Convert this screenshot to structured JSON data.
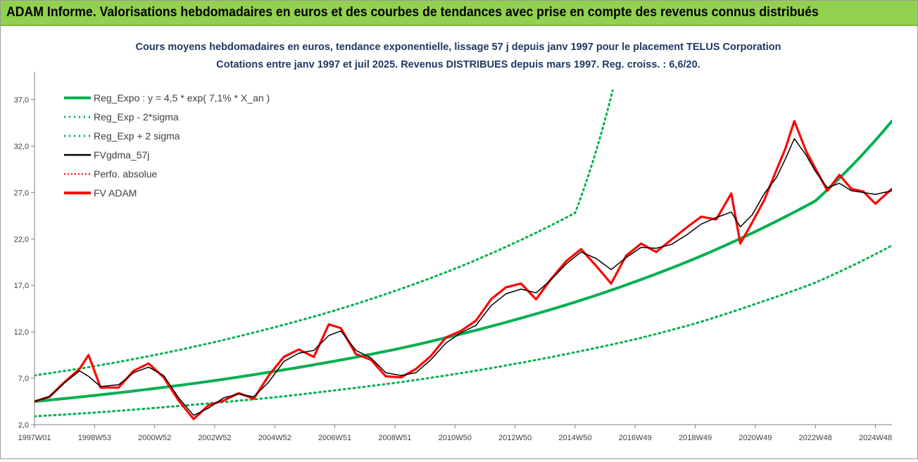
{
  "header": {
    "title": "ADAM Informe. Valorisations hebdomadaires en euros et des courbes de tendances avec prise en compte des revenus connus distribués"
  },
  "colors": {
    "banner": "#92d050",
    "trend": "#00b050",
    "fv_gdma": "#000000",
    "fv_adam": "#ff0000",
    "title_text": "#1f3864"
  },
  "chart_data": {
    "type": "line",
    "title": "Cours moyens hebdomadaires en euros, tendance exponentielle, lissage 57 j depuis janv 1997  pour le placement TELUS Corporation",
    "subtitle": "Cotations entre janv 1997 et juil 2025. Revenus DISTRIBUES depuis mars 1997. Reg. croiss. : 6,6/20.",
    "xlabel": "",
    "ylabel": "",
    "x_range": [
      1997.0,
      2025.55
    ],
    "ylim": [
      2.0,
      40.0
    ],
    "y_ticks": [
      "2,0",
      "7,0",
      "12,0",
      "17,0",
      "22,0",
      "27,0",
      "32,0",
      "37,0"
    ],
    "y_tick_values": [
      2,
      7,
      12,
      17,
      22,
      27,
      32,
      37
    ],
    "x_ticks": [
      "1997W01",
      "1998W53",
      "2000W52",
      "2002W52",
      "2004W52",
      "2006W51",
      "2008W51",
      "2010W50",
      "2012W50",
      "2014W50",
      "2016W49",
      "2018W49",
      "2020W49",
      "2022W48",
      "2024W48"
    ],
    "x_tick_years": [
      1997.0,
      1999.0,
      2001.0,
      2003.0,
      2005.0,
      2007.0,
      2009.0,
      2011.0,
      2013.0,
      2015.0,
      2017.0,
      2019.0,
      2021.0,
      2023.0,
      2025.0
    ],
    "grid": false,
    "legend_placement": "top-left",
    "legend": [
      "Reg_Expo : y = 4,5  * exp( 7,1% *  X_an )",
      "Reg_Exp - 2*sigma",
      "Reg_Exp + 2 sigma",
      "FVgdma_57j",
      "Perfo. absolue",
      "FV ADAM"
    ],
    "series": [
      {
        "name": "Reg_Expo : y = 4,5  * exp( 7,1% *  X_an )",
        "style": "solid-thick",
        "x": [
          1997.0,
          1999.0,
          2001.0,
          2003.0,
          2005.0,
          2007.0,
          2009.0,
          2011.0,
          2013.0,
          2015.0,
          2017.0,
          2019.0,
          2021.0,
          2023.0,
          2025.55
        ],
        "values": [
          4.5,
          5.15,
          5.9,
          6.75,
          7.75,
          8.85,
          10.1,
          11.6,
          13.3,
          15.2,
          17.4,
          19.9,
          22.8,
          26.1,
          34.7
        ]
      },
      {
        "name": "Reg_Exp - 2*sigma",
        "style": "dotted",
        "x": [
          1997.0,
          1999.0,
          2001.0,
          2003.0,
          2005.0,
          2007.0,
          2009.0,
          2011.0,
          2013.0,
          2015.0,
          2017.0,
          2019.0,
          2021.0,
          2023.0,
          2025.55
        ],
        "values": [
          2.9,
          3.3,
          3.8,
          4.35,
          4.95,
          5.7,
          6.5,
          7.45,
          8.55,
          9.8,
          11.2,
          12.9,
          15.0,
          17.3,
          21.3
        ]
      },
      {
        "name": "Reg_Exp + 2 sigma",
        "style": "dotted",
        "x": [
          1997.0,
          1999.0,
          2001.0,
          2003.0,
          2005.0,
          2007.0,
          2009.0,
          2011.0,
          2013.0,
          2015.0,
          2016.25
        ],
        "values": [
          7.3,
          8.3,
          9.5,
          10.9,
          12.5,
          14.3,
          16.4,
          18.8,
          21.6,
          24.8,
          38.0
        ]
      },
      {
        "name": "FVgdma_57j",
        "style": "solid-thin",
        "x": [
          1997.0,
          1997.5,
          1998.0,
          1998.5,
          1998.8,
          1999.2,
          1999.8,
          2000.3,
          2000.8,
          2001.3,
          2001.8,
          2002.3,
          2002.8,
          2003.3,
          2003.8,
          2004.3,
          2004.8,
          2005.3,
          2005.8,
          2006.3,
          2006.8,
          2007.2,
          2007.7,
          2008.2,
          2008.7,
          2009.2,
          2009.7,
          2010.2,
          2010.7,
          2011.2,
          2011.7,
          2012.2,
          2012.7,
          2013.2,
          2013.7,
          2014.2,
          2014.7,
          2015.2,
          2015.7,
          2016.2,
          2016.7,
          2017.2,
          2017.7,
          2018.2,
          2018.7,
          2019.2,
          2019.7,
          2020.2,
          2020.5,
          2020.9,
          2021.3,
          2021.7,
          2022.0,
          2022.3,
          2022.7,
          2023.0,
          2023.4,
          2023.8,
          2024.2,
          2024.6,
          2025.0,
          2025.55
        ],
        "values": [
          4.5,
          5.0,
          6.5,
          7.8,
          7.2,
          6.1,
          6.3,
          7.6,
          8.2,
          7.3,
          4.9,
          3.0,
          3.8,
          4.9,
          5.3,
          5.0,
          6.6,
          8.8,
          9.7,
          10.0,
          11.6,
          12.1,
          10.0,
          9.2,
          7.6,
          7.3,
          7.6,
          9.0,
          10.8,
          11.9,
          12.7,
          14.8,
          16.1,
          16.6,
          16.2,
          17.6,
          19.3,
          20.6,
          19.9,
          18.7,
          20.0,
          21.1,
          21.0,
          21.4,
          22.4,
          23.6,
          24.3,
          24.9,
          23.3,
          24.6,
          26.9,
          28.6,
          30.6,
          32.8,
          31.0,
          29.3,
          27.5,
          28.0,
          27.2,
          27.0,
          26.8,
          27.2
        ]
      },
      {
        "name": "Perfo. absolue",
        "style": "dotted-red",
        "x": [],
        "values": []
      },
      {
        "name": "FV ADAM",
        "style": "solid-thick",
        "x": [
          1997.0,
          1997.5,
          1998.0,
          1998.5,
          1998.8,
          1999.2,
          1999.8,
          2000.3,
          2000.8,
          2001.3,
          2001.8,
          2002.3,
          2002.8,
          2003.3,
          2003.8,
          2004.3,
          2004.8,
          2005.3,
          2005.8,
          2006.3,
          2006.8,
          2007.2,
          2007.7,
          2008.2,
          2008.7,
          2009.2,
          2009.7,
          2010.2,
          2010.7,
          2011.2,
          2011.7,
          2012.2,
          2012.7,
          2013.2,
          2013.7,
          2014.2,
          2014.7,
          2015.2,
          2015.7,
          2016.2,
          2016.7,
          2017.2,
          2017.7,
          2018.2,
          2018.7,
          2019.2,
          2019.7,
          2020.2,
          2020.5,
          2020.9,
          2021.3,
          2021.7,
          2022.0,
          2022.3,
          2022.7,
          2023.0,
          2023.4,
          2023.8,
          2024.2,
          2024.6,
          2025.0,
          2025.55
        ],
        "values": [
          4.5,
          5.0,
          6.6,
          8.0,
          9.5,
          6.0,
          6.0,
          7.8,
          8.6,
          7.1,
          4.6,
          2.6,
          4.1,
          4.6,
          5.4,
          4.8,
          7.3,
          9.3,
          10.1,
          9.3,
          12.8,
          12.4,
          9.6,
          9.0,
          7.2,
          7.1,
          8.0,
          9.4,
          11.4,
          12.1,
          13.2,
          15.5,
          16.8,
          17.2,
          15.5,
          17.7,
          19.6,
          20.9,
          19.1,
          17.2,
          20.2,
          21.5,
          20.6,
          21.9,
          23.2,
          24.4,
          24.1,
          26.9,
          21.5,
          23.8,
          26.2,
          29.4,
          31.7,
          34.7,
          31.4,
          29.6,
          27.2,
          28.9,
          27.4,
          27.1,
          25.8,
          27.4
        ]
      }
    ]
  }
}
